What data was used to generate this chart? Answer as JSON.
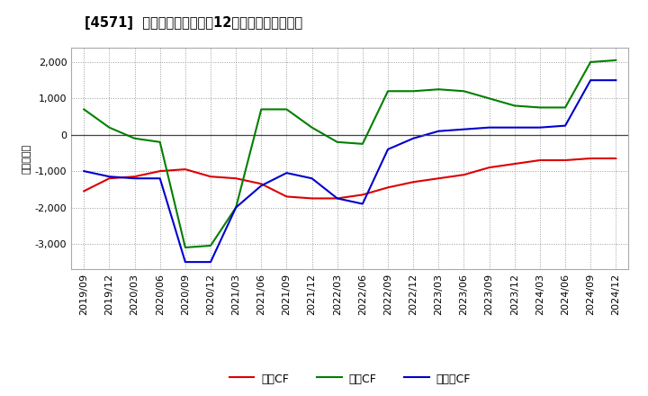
{
  "title": "[4571]  キャッシュフローの12か月移動合計の推移",
  "ylabel": "（百万円）",
  "background_color": "#ffffff",
  "grid_color": "#aaaaaa",
  "x_labels": [
    "2019/09",
    "2019/12",
    "2020/03",
    "2020/06",
    "2020/09",
    "2020/12",
    "2021/03",
    "2021/06",
    "2021/09",
    "2021/12",
    "2022/03",
    "2022/06",
    "2022/09",
    "2022/12",
    "2023/03",
    "2023/06",
    "2023/09",
    "2023/12",
    "2024/03",
    "2024/06",
    "2024/09",
    "2024/12"
  ],
  "eigyo_cf": [
    -1550,
    -1200,
    -1150,
    -1000,
    -950,
    -1150,
    -1200,
    -1350,
    -1700,
    -1750,
    -1750,
    -1650,
    -1450,
    -1300,
    -1200,
    -1100,
    -900,
    -800,
    -700,
    -700,
    -650,
    -650
  ],
  "toshi_cf": [
    700,
    200,
    -100,
    -200,
    -3100,
    -3050,
    -2000,
    700,
    700,
    200,
    -200,
    -250,
    1200,
    1200,
    1250,
    1200,
    1000,
    800,
    750,
    750,
    2000,
    2050
  ],
  "free_cf": [
    -1000,
    -1150,
    -1200,
    -1200,
    -3500,
    -3500,
    -2000,
    -1400,
    -1050,
    -1200,
    -1750,
    -1900,
    -400,
    -100,
    100,
    150,
    200,
    200,
    200,
    250,
    1500,
    1500
  ],
  "eigyo_color": "#dd0000",
  "toshi_color": "#008000",
  "free_color": "#0000cc",
  "eigyo_label": "営業CF",
  "toshi_label": "投資CF",
  "free_label": "フリーCF",
  "ylim": [
    -3700,
    2400
  ],
  "yticks": [
    -3000,
    -2000,
    -1000,
    0,
    1000,
    2000
  ]
}
